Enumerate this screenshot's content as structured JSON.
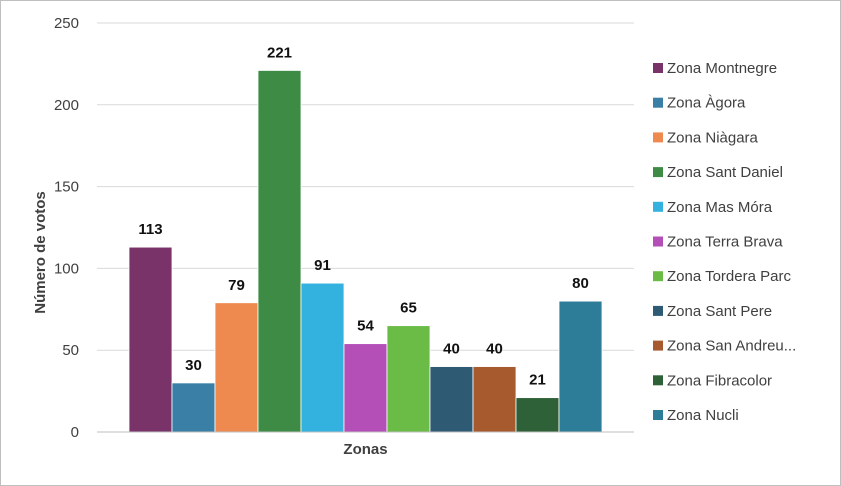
{
  "chart_data": {
    "type": "bar",
    "title": "",
    "xlabel": "Zonas",
    "ylabel": "Número de votos",
    "ylim": [
      0,
      250
    ],
    "yticks": [
      0,
      50,
      100,
      150,
      200,
      250
    ],
    "grid": true,
    "legend_position": "right",
    "series": [
      {
        "name": "Zona Montnegre",
        "value": 113,
        "color": "#7a3368"
      },
      {
        "name": "Zona Àgora",
        "value": 30,
        "color": "#3a7fa6"
      },
      {
        "name": "Zona Niàgara",
        "value": 79,
        "color": "#ee8a4f"
      },
      {
        "name": "Zona Sant Daniel",
        "value": 221,
        "color": "#3d8b44"
      },
      {
        "name": "Zona Mas Móra",
        "value": 91,
        "color": "#33b2e0"
      },
      {
        "name": "Zona Terra Brava",
        "value": 54,
        "color": "#b54fb8"
      },
      {
        "name": "Zona Tordera  Parc",
        "value": 65,
        "color": "#6bbb47"
      },
      {
        "name": "Zona Sant Pere",
        "value": 40,
        "color": "#2f5a73"
      },
      {
        "name": "Zona San Andreu...",
        "value": 40,
        "color": "#a85a2f"
      },
      {
        "name": "Zona Fibracolor",
        "value": 21,
        "color": "#2f6138"
      },
      {
        "name": "Zona Nucli",
        "value": 80,
        "color": "#2d7d99"
      }
    ]
  }
}
